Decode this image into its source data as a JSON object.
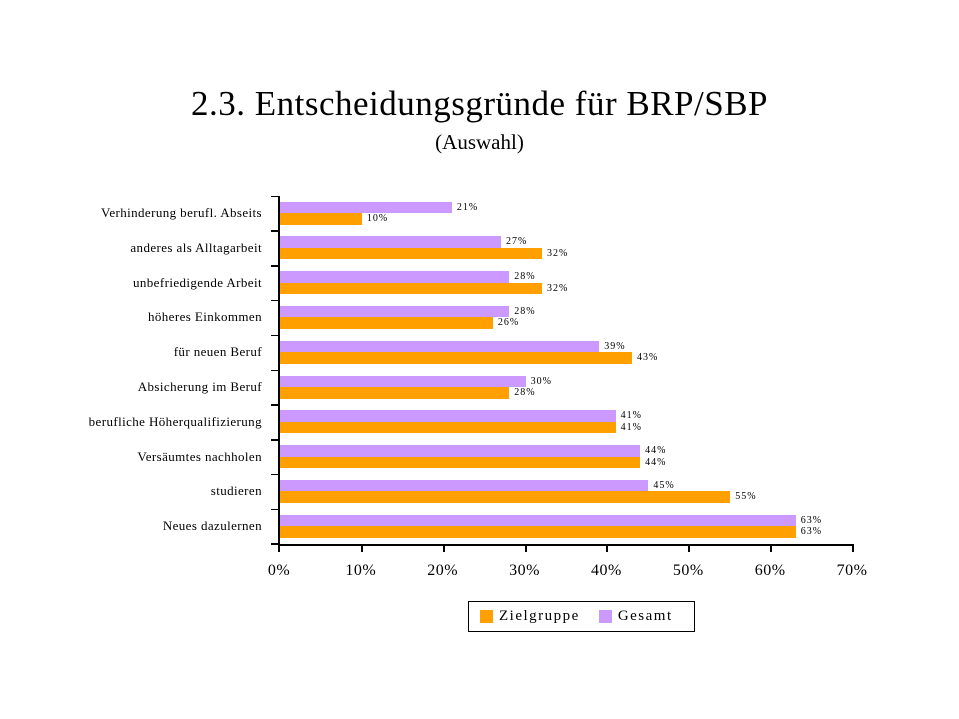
{
  "chart_data": {
    "type": "bar",
    "orientation": "horizontal",
    "title": "2.3. Entscheidungsgründe für BRP/SBP",
    "subtitle": "(Auswahl)",
    "categories": [
      "Verhinderung berufl. Abseits",
      "anderes als Alltagarbeit",
      "unbefriedigende Arbeit",
      "höheres Einkommen",
      "für neuen Beruf",
      "Absicherung im Beruf",
      "berufliche Höherqualifizierung",
      "Versäumtes nachholen",
      "studieren",
      "Neues dazulernen"
    ],
    "series": [
      {
        "name": "Zielgruppe",
        "color": "#FFA000",
        "values": [
          10,
          32,
          32,
          26,
          43,
          28,
          41,
          44,
          55,
          63
        ]
      },
      {
        "name": "Gesamt",
        "color": "#CC99FF",
        "values": [
          21,
          27,
          28,
          28,
          39,
          30,
          41,
          44,
          45,
          63
        ]
      }
    ],
    "group_order_top_to_bottom": [
      "Gesamt",
      "Zielgruppe"
    ],
    "value_suffix": "%",
    "x_ticks": [
      "0%",
      "10%",
      "20%",
      "30%",
      "40%",
      "50%",
      "60%",
      "70%"
    ],
    "xlim": [
      0,
      70
    ],
    "grid": false,
    "data_labels": true,
    "legend_position": "bottom",
    "axis_color": "#000000",
    "text_color": "#000000",
    "background_color": "#FFFFFF"
  }
}
